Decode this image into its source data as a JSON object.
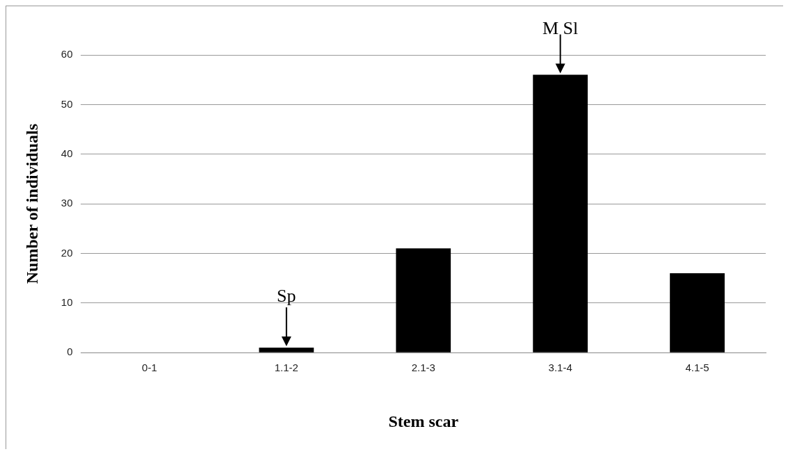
{
  "chart_data": {
    "type": "bar",
    "xlabel": "Stem scar",
    "ylabel": "Number of individuals",
    "categories": [
      "0-1",
      "1.1-2",
      "2.1-3",
      "3.1-4",
      "4.1-5"
    ],
    "values": [
      0,
      1,
      21,
      56,
      16
    ],
    "color": "#000000",
    "ylim": [
      0,
      60
    ],
    "yticks": [
      0,
      10,
      20,
      30,
      40,
      50,
      60
    ],
    "grid": "y",
    "legend": false,
    "annotations": [
      {
        "text": "Sp",
        "x": "1.1-2",
        "y": 1
      },
      {
        "text": "M Sl",
        "x": "3.1-4",
        "y": 56
      }
    ]
  }
}
